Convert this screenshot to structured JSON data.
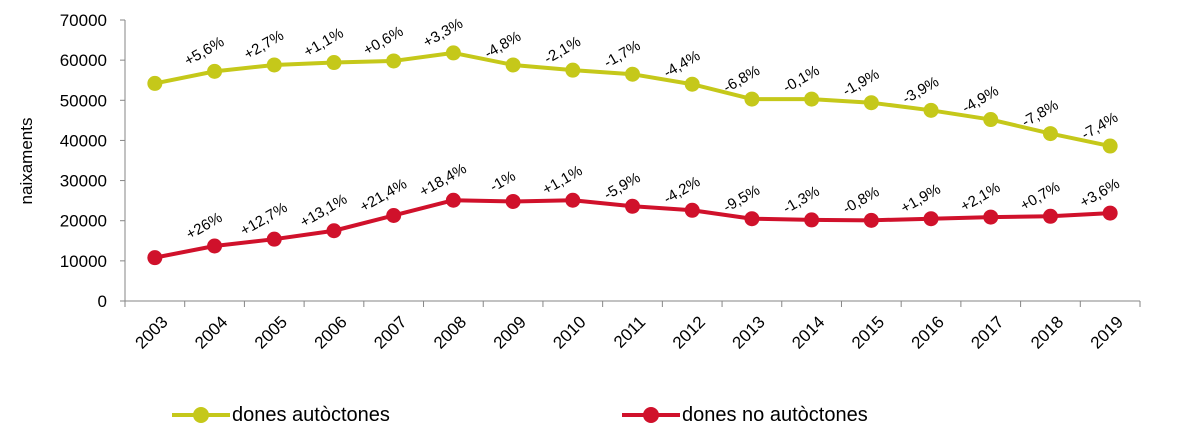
{
  "chart_data": {
    "type": "line",
    "categories": [
      "2003",
      "2004",
      "2005",
      "2006",
      "2007",
      "2008",
      "2009",
      "2010",
      "2011",
      "2012",
      "2013",
      "2014",
      "2015",
      "2016",
      "2017",
      "2018",
      "2019"
    ],
    "ylabel": "naixaments",
    "ylim": [
      0,
      70000
    ],
    "yticks": [
      0,
      10000,
      20000,
      30000,
      40000,
      50000,
      60000,
      70000
    ],
    "grid": false,
    "legend_position": "bottom",
    "series": [
      {
        "name": "dones autòctones",
        "color": "#c5c81a",
        "values": [
          54200,
          57200,
          58800,
          59400,
          59800,
          61800,
          58800,
          57500,
          56500,
          54000,
          50300,
          50300,
          49400,
          47500,
          45200,
          41700,
          38600
        ],
        "labels": [
          "",
          "+5,6%",
          "+2,7%",
          "+1,1%",
          "+0,6%",
          "+3,3%",
          "-4,8%",
          "-2,1%",
          "-1,7%",
          "-4,4%",
          "-6,8%",
          "-0,1%",
          "-1,9%",
          "-3,9%",
          "-4,9%",
          "-7,8%",
          "-7,4%"
        ]
      },
      {
        "name": "dones no autòctones",
        "color": "#d0112b",
        "values": [
          10800,
          13700,
          15400,
          17500,
          21300,
          25100,
          24800,
          25100,
          23600,
          22600,
          20500,
          20200,
          20100,
          20500,
          20900,
          21100,
          21900
        ],
        "labels": [
          "",
          "+26%",
          "+12,7%",
          "+13,1%",
          "+21,4%",
          "+18,4%",
          "-1%",
          "+1,1%",
          "-5,9%",
          "-4,2%",
          "-9,5%",
          "-1,3%",
          "-0,8%",
          "+1,9%",
          "+2,1%",
          "+0,7%",
          "+3,6%"
        ]
      }
    ]
  }
}
